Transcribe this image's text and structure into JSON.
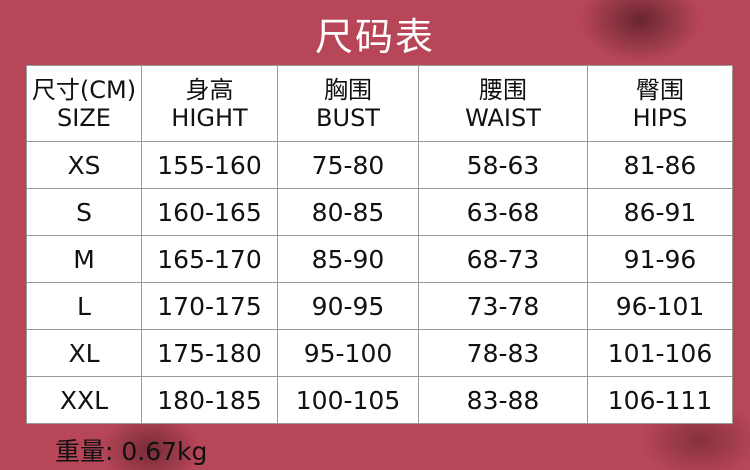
{
  "title": "尺码表",
  "table": {
    "headers": [
      {
        "cn": "尺寸(CM)",
        "en": "SIZE"
      },
      {
        "cn": "身高",
        "en": "HIGHT"
      },
      {
        "cn": "胸围",
        "en": "BUST"
      },
      {
        "cn": "腰围",
        "en": "WAIST"
      },
      {
        "cn": "臀围",
        "en": "HIPS"
      }
    ],
    "rows": [
      [
        "XS",
        "155-160",
        "75-80",
        "58-63",
        "81-86"
      ],
      [
        "S",
        "160-165",
        "80-85",
        "63-68",
        "86-91"
      ],
      [
        "M",
        "165-170",
        "85-90",
        "68-73",
        "91-96"
      ],
      [
        "L",
        "170-175",
        "90-95",
        "73-78",
        "96-101"
      ],
      [
        "XL",
        "175-180",
        "95-100",
        "78-83",
        "101-106"
      ],
      [
        "XXL",
        "180-185",
        "100-105",
        "83-88",
        "106-111"
      ]
    ]
  },
  "footer": {
    "weight": "重量: 0.67kg"
  },
  "colors": {
    "background": "#b74658",
    "table": "#ffffff",
    "title": "#ffffff"
  }
}
